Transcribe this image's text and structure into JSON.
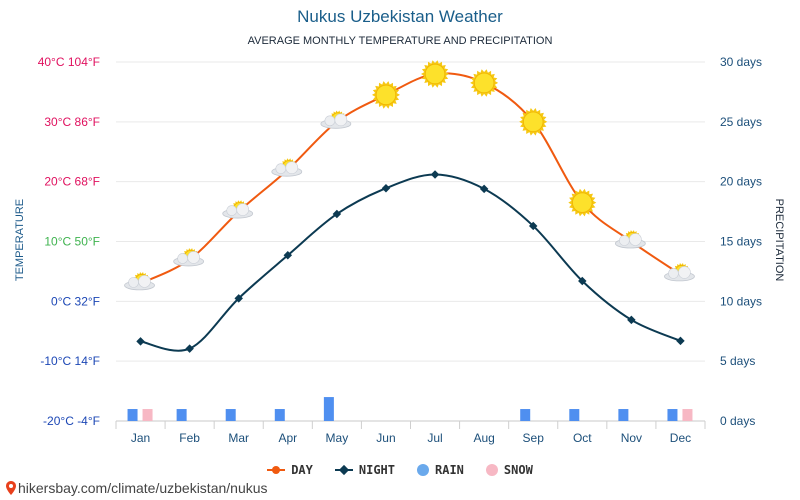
{
  "page": {
    "title": "Nukus Uzbekistan Weather",
    "subtitle": "AVERAGE MONTHLY TEMPERATURE AND PRECIPITATION",
    "footer_url": "hikersbay.com/climate/uzbekistan/nukus"
  },
  "chart_data": {
    "type": "line",
    "title": "Nukus Uzbekistan Weather",
    "subtitle": "AVERAGE MONTHLY TEMPERATURE AND PRECIPITATION",
    "ylabel_left": "TEMPERATURE",
    "ylabel_right": "PRECIPITATION",
    "categories": [
      "Jan",
      "Feb",
      "Mar",
      "Apr",
      "May",
      "Jun",
      "Jul",
      "Aug",
      "Sep",
      "Oct",
      "Nov",
      "Dec"
    ],
    "y_left_ticks": [
      {
        "value": 40,
        "label": "40°C 104°F",
        "color": "#e0115f"
      },
      {
        "value": 30,
        "label": "30°C 86°F",
        "color": "#e0115f"
      },
      {
        "value": 20,
        "label": "20°C 68°F",
        "color": "#e0115f"
      },
      {
        "value": 10,
        "label": "10°C 50°F",
        "color": "#3fb34f"
      },
      {
        "value": 0,
        "label": "0°C 32°F",
        "color": "#1c47b5"
      },
      {
        "value": -10,
        "label": "-10°C 14°F",
        "color": "#1c47b5"
      },
      {
        "value": -20,
        "label": "-20°C -4°F",
        "color": "#1c47b5"
      }
    ],
    "y_right_ticks": [
      {
        "value": 30,
        "label": "30 days"
      },
      {
        "value": 25,
        "label": "25 days"
      },
      {
        "value": 20,
        "label": "20 days"
      },
      {
        "value": 15,
        "label": "15 days"
      },
      {
        "value": 10,
        "label": "10 days"
      },
      {
        "value": 5,
        "label": "5 days"
      },
      {
        "value": 0,
        "label": "0 days"
      }
    ],
    "ylim_left": [
      -20,
      40
    ],
    "ylim_right": [
      0,
      30
    ],
    "series": [
      {
        "name": "DAY",
        "color": "#f05a10",
        "values": [
          3,
          7,
          15,
          22,
          30,
          34.5,
          38,
          36.5,
          30,
          16.5,
          10,
          4.5
        ],
        "icons": [
          "partly-cloudy",
          "partly-cloudy",
          "partly-cloudy",
          "partly-cloudy",
          "partly-cloudy",
          "sunny",
          "sunny",
          "sunny",
          "sunny",
          "sunny",
          "partly-cloudy",
          "partly-cloudy"
        ]
      },
      {
        "name": "NIGHT",
        "color": "#0c3a52",
        "values": [
          -6.7,
          -7.9,
          0.5,
          7.7,
          14.6,
          18.9,
          21.2,
          18.8,
          12.6,
          3.4,
          -3.1,
          -6.6
        ]
      },
      {
        "name": "RAIN",
        "color": "#4f8ff0",
        "values": [
          1,
          1,
          1,
          1,
          2,
          0,
          0,
          0,
          1,
          1,
          1,
          1
        ]
      },
      {
        "name": "SNOW",
        "color": "#f7b8c4",
        "values": [
          1,
          0,
          0,
          0,
          0,
          0,
          0,
          0,
          0,
          0,
          0,
          1
        ]
      }
    ],
    "legend": [
      {
        "name": "DAY",
        "color": "#f05a10"
      },
      {
        "name": "NIGHT",
        "color": "#0c3a52"
      },
      {
        "name": "RAIN",
        "color": "#6aa9ec"
      },
      {
        "name": "SNOW",
        "color": "#f7b8c4"
      }
    ]
  }
}
